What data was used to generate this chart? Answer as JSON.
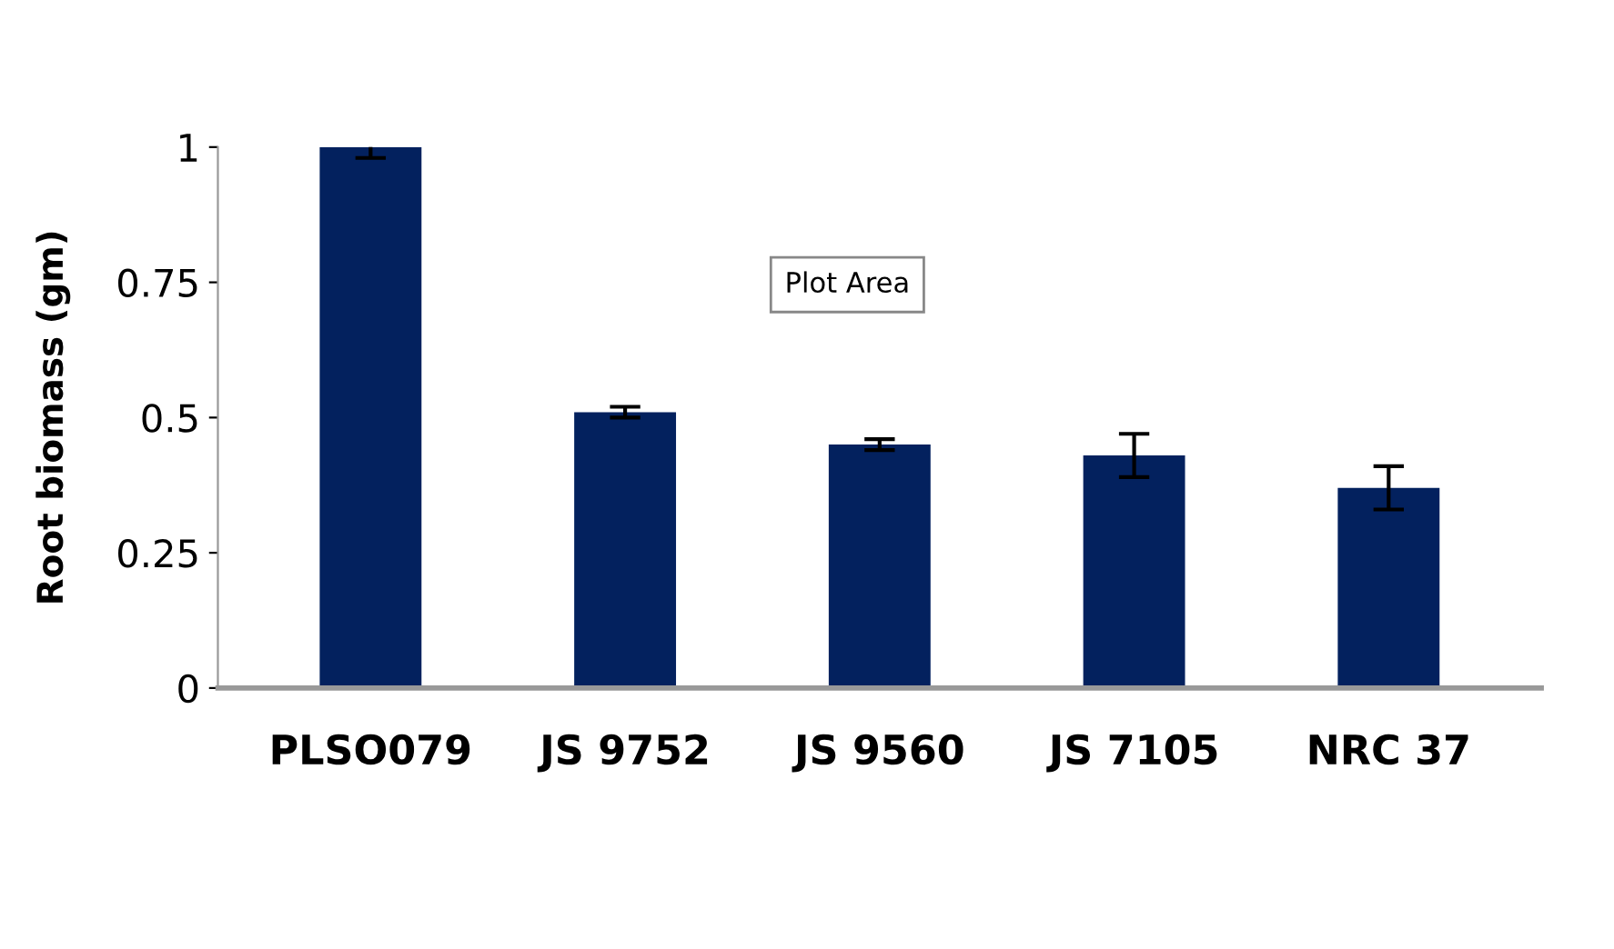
{
  "chart_data": {
    "type": "bar",
    "ylabel": "Root biomass (gm)",
    "categories": [
      "PLSO079",
      "JS 9752",
      "JS 9560",
      "JS 7105",
      "NRC 37"
    ],
    "values": [
      1.0,
      0.51,
      0.45,
      0.43,
      0.37
    ],
    "errors": [
      0.02,
      0.01,
      0.01,
      0.04,
      0.04
    ],
    "color": "#03215e",
    "ylim": [
      0,
      1
    ],
    "yticks": [
      0,
      0.25,
      0.5,
      0.75,
      1
    ],
    "grid": false,
    "legend": false,
    "annotations": [
      "Plot Area"
    ]
  }
}
